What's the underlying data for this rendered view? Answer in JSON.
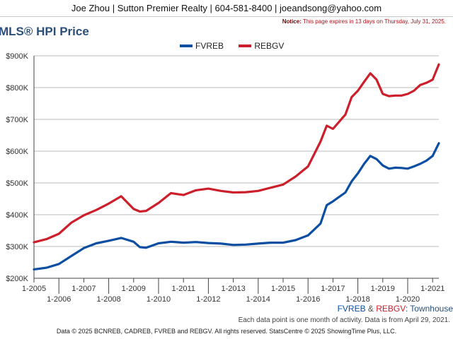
{
  "header": {
    "contact": "Joe Zhou | Sutton Premier Realty | 604-581-8400 | joeandsong@yahoo.com",
    "notice_label": "Notice:",
    "notice_text": "This page expires in 13 days on Thursday, July 31, 2025."
  },
  "footer": {
    "area_series1": "FVREB",
    "area_amp": " & ",
    "area_series2": "REBGV",
    "area_suffix": ": Townhouse",
    "data_note": "Each data point is one month of activity. Data is from April 29, 2021.",
    "copyright": "Data © 2025 BCNREB, CADREB, FVREB and REBGV. All rights reserved. StatsCentre © 2025 ShowingTime Plus, LLC."
  },
  "colors": {
    "fvreb": "#0b4ea2",
    "rebgv": "#cc1f2b",
    "grid": "#bbbbbb",
    "title": "#2a4f7a"
  },
  "chart_data": {
    "type": "line",
    "title": "MLS® HPI Price",
    "ylim": [
      200000,
      900000
    ],
    "y_ticks": [
      200000,
      300000,
      400000,
      500000,
      600000,
      700000,
      800000,
      900000
    ],
    "y_tick_labels": [
      "$200K",
      "$300K",
      "$400K",
      "$500K",
      "$600K",
      "$700K",
      "$800K",
      "$900K"
    ],
    "x_ticks_upper": [
      "1-2005",
      "1-2007",
      "1-2009",
      "1-2011",
      "1-2013",
      "1-2015",
      "1-2017",
      "1-2019",
      "1-2021"
    ],
    "x_ticks_lower": [
      "1-2006",
      "1-2008",
      "1-2010",
      "1-2012",
      "1-2014",
      "1-2016",
      "1-2018",
      "1-2020"
    ],
    "x_range": [
      "2005-01",
      "2021-04"
    ],
    "grid": true,
    "legend_position": "top-center",
    "series": [
      {
        "name": "FVREB",
        "points": [
          [
            "2005-01",
            228000
          ],
          [
            "2005-07",
            233000
          ],
          [
            "2006-01",
            245000
          ],
          [
            "2006-07",
            270000
          ],
          [
            "2007-01",
            295000
          ],
          [
            "2007-07",
            310000
          ],
          [
            "2008-01",
            318000
          ],
          [
            "2008-07",
            327000
          ],
          [
            "2009-01",
            315000
          ],
          [
            "2009-04",
            298000
          ],
          [
            "2009-07",
            296000
          ],
          [
            "2010-01",
            310000
          ],
          [
            "2010-07",
            315000
          ],
          [
            "2011-01",
            312000
          ],
          [
            "2011-07",
            314000
          ],
          [
            "2012-01",
            311000
          ],
          [
            "2012-07",
            309000
          ],
          [
            "2013-01",
            305000
          ],
          [
            "2013-07",
            306000
          ],
          [
            "2014-01",
            309000
          ],
          [
            "2014-07",
            312000
          ],
          [
            "2015-01",
            312000
          ],
          [
            "2015-07",
            320000
          ],
          [
            "2016-01",
            335000
          ],
          [
            "2016-07",
            372000
          ],
          [
            "2016-10",
            430000
          ],
          [
            "2017-01",
            442000
          ],
          [
            "2017-07",
            470000
          ],
          [
            "2017-10",
            505000
          ],
          [
            "2018-01",
            530000
          ],
          [
            "2018-04",
            560000
          ],
          [
            "2018-07",
            585000
          ],
          [
            "2018-10",
            575000
          ],
          [
            "2019-01",
            555000
          ],
          [
            "2019-04",
            545000
          ],
          [
            "2019-07",
            548000
          ],
          [
            "2019-10",
            547000
          ],
          [
            "2020-01",
            545000
          ],
          [
            "2020-04",
            552000
          ],
          [
            "2020-07",
            560000
          ],
          [
            "2020-10",
            570000
          ],
          [
            "2021-01",
            585000
          ],
          [
            "2021-04",
            625000
          ]
        ]
      },
      {
        "name": "REBGV",
        "points": [
          [
            "2005-01",
            313000
          ],
          [
            "2005-07",
            323000
          ],
          [
            "2006-01",
            340000
          ],
          [
            "2006-07",
            375000
          ],
          [
            "2007-01",
            398000
          ],
          [
            "2007-07",
            415000
          ],
          [
            "2008-01",
            435000
          ],
          [
            "2008-07",
            458000
          ],
          [
            "2009-01",
            418000
          ],
          [
            "2009-04",
            410000
          ],
          [
            "2009-07",
            412000
          ],
          [
            "2010-01",
            437000
          ],
          [
            "2010-07",
            468000
          ],
          [
            "2011-01",
            462000
          ],
          [
            "2011-07",
            477000
          ],
          [
            "2012-01",
            482000
          ],
          [
            "2012-07",
            475000
          ],
          [
            "2013-01",
            470000
          ],
          [
            "2013-07",
            471000
          ],
          [
            "2014-01",
            475000
          ],
          [
            "2014-07",
            485000
          ],
          [
            "2015-01",
            495000
          ],
          [
            "2015-07",
            520000
          ],
          [
            "2016-01",
            552000
          ],
          [
            "2016-07",
            630000
          ],
          [
            "2016-10",
            680000
          ],
          [
            "2017-01",
            670000
          ],
          [
            "2017-07",
            715000
          ],
          [
            "2017-10",
            770000
          ],
          [
            "2018-01",
            790000
          ],
          [
            "2018-04",
            818000
          ],
          [
            "2018-07",
            845000
          ],
          [
            "2018-10",
            825000
          ],
          [
            "2019-01",
            780000
          ],
          [
            "2019-04",
            773000
          ],
          [
            "2019-07",
            775000
          ],
          [
            "2019-10",
            775000
          ],
          [
            "2020-01",
            780000
          ],
          [
            "2020-04",
            790000
          ],
          [
            "2020-07",
            808000
          ],
          [
            "2020-10",
            815000
          ],
          [
            "2021-01",
            825000
          ],
          [
            "2021-04",
            873000
          ]
        ]
      }
    ]
  }
}
